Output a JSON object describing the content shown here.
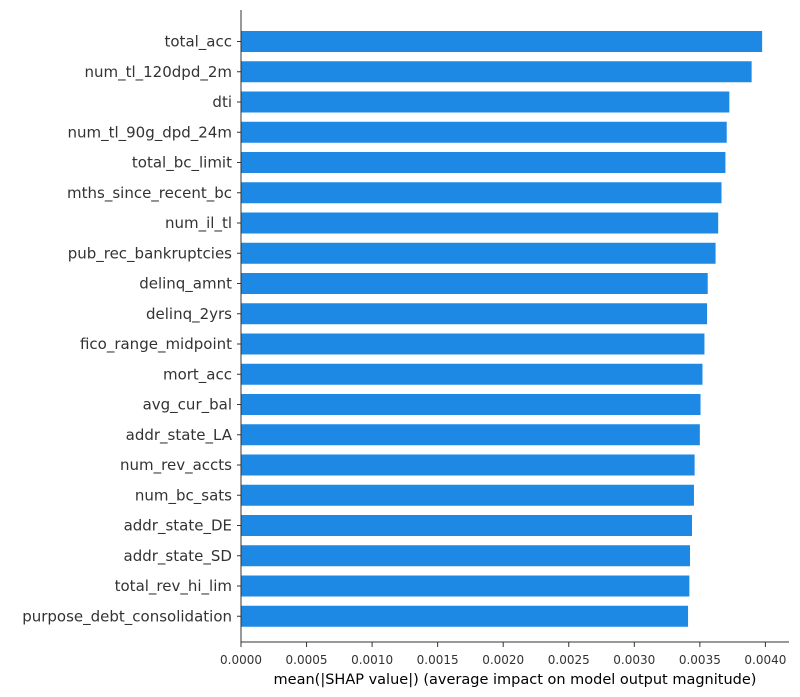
{
  "chart_data": {
    "type": "bar",
    "orientation": "horizontal",
    "categories": [
      "total_acc",
      "num_tl_120dpd_2m",
      "dti",
      "num_tl_90g_dpd_24m",
      "total_bc_limit",
      "mths_since_recent_bc",
      "num_il_tl",
      "pub_rec_bankruptcies",
      "delinq_amnt",
      "delinq_2yrs",
      "fico_range_midpoint",
      "mort_acc",
      "avg_cur_bal",
      "addr_state_LA",
      "num_rev_accts",
      "num_bc_sats",
      "addr_state_DE",
      "addr_state_SD",
      "total_rev_hi_lim",
      "purpose_debt_consolidation"
    ],
    "values": [
      0.003975,
      0.003895,
      0.003725,
      0.003705,
      0.003695,
      0.003665,
      0.00364,
      0.00362,
      0.00356,
      0.003555,
      0.003535,
      0.00352,
      0.003505,
      0.0035,
      0.00346,
      0.003455,
      0.00344,
      0.003425,
      0.00342,
      0.00341
    ],
    "xlim": [
      0,
      0.00418
    ],
    "xticks": [
      "0.0000",
      "0.0005",
      "0.0010",
      "0.0015",
      "0.0020",
      "0.0025",
      "0.0030",
      "0.0035",
      "0.0040"
    ],
    "xlabel": "mean(|SHAP value|) (average impact on model output magnitude)",
    "ylabel": "",
    "title": "",
    "bar_color": "#1e88e5",
    "grid": false
  }
}
